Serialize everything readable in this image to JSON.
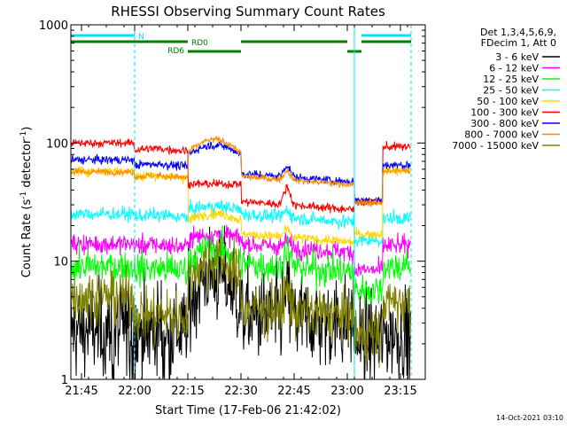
{
  "chart_data": {
    "type": "line",
    "title": "RHESSI Observing Summary Count Rates",
    "xlabel": "Start Time (17-Feb-06 21:42:02)",
    "ylabel_main": "Count Rate (s",
    "ylabel_sup1": "-1",
    "ylabel_mid": " detector",
    "ylabel_sup2": "-1",
    "ylabel_end": ")",
    "x_range_min": [
      0,
      100
    ],
    "y_range": [
      1,
      1000
    ],
    "y_scale": "log",
    "x_ticks": [
      {
        "min": 3,
        "label": "21:45"
      },
      {
        "min": 18,
        "label": "22:00"
      },
      {
        "min": 33,
        "label": "22:15"
      },
      {
        "min": 48,
        "label": "22:30"
      },
      {
        "min": 63,
        "label": "22:45"
      },
      {
        "min": 78,
        "label": "23:00"
      },
      {
        "min": 93,
        "label": "23:15"
      }
    ],
    "y_ticks": [
      {
        "value": 1,
        "label": "1"
      },
      {
        "value": 10,
        "label": "10"
      },
      {
        "value": 100,
        "label": "100"
      },
      {
        "value": 1000,
        "label": "1000"
      }
    ],
    "legend_header": [
      "Det 1,3,4,5,6,9,",
      "FDecim 1, Att 0"
    ],
    "legend_placement": "right",
    "series": [
      {
        "name": "3 - 6 keV",
        "color": "#000000",
        "values": []
      },
      {
        "name": "6 - 12 keV",
        "color": "#ff00ff",
        "values": []
      },
      {
        "name": "12 - 25 keV",
        "color": "#00ff00",
        "values": []
      },
      {
        "name": "25 - 50 keV",
        "color": "#00ffff",
        "values": []
      },
      {
        "name": "50 - 100 keV",
        "color": "#ffd700",
        "values": []
      },
      {
        "name": "100 - 300 keV",
        "color": "#ff0000",
        "values": []
      },
      {
        "name": "300 - 800 keV",
        "color": "#0000ff",
        "values": []
      },
      {
        "name": "800 - 7000 keV",
        "color": "#ff8c00",
        "values": []
      },
      {
        "name": "7000 - 15000 keV",
        "color": "#808000",
        "values": []
      }
    ],
    "annotations": {
      "night_bar": {
        "label": "N",
        "color": "#00e5ff",
        "segments": [
          [
            0,
            18
          ],
          [
            82,
            96
          ]
        ]
      },
      "rd0_bar": {
        "label": "RD0",
        "color": "#008000",
        "segments": [
          [
            0,
            33
          ],
          [
            48,
            78
          ],
          [
            82,
            96
          ]
        ]
      },
      "rd6_bar": {
        "label": "RD6",
        "color": "#008000",
        "segments": [
          [
            33,
            48
          ],
          [
            78,
            82
          ]
        ]
      },
      "solid_vlines_min": [
        0,
        80
      ],
      "dashed_vlines_min": [
        18,
        96
      ]
    },
    "timestamp": "14-Oct-2021 03:10"
  }
}
